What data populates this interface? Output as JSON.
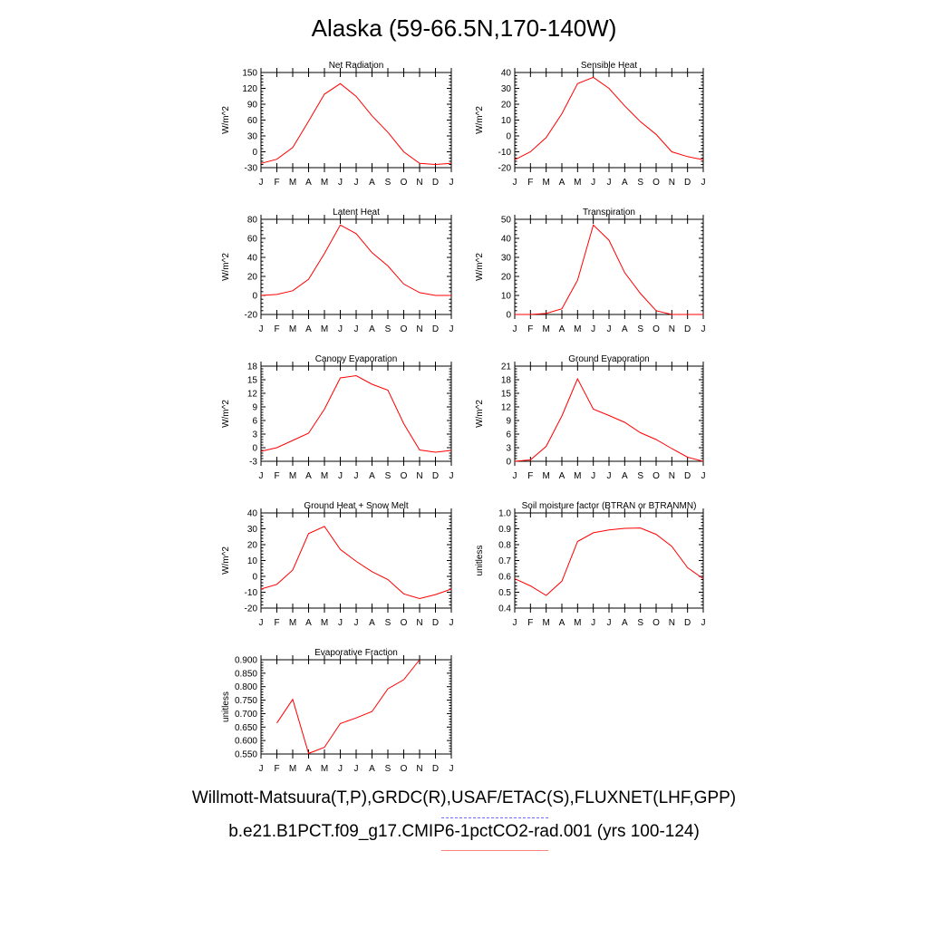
{
  "title": "Alaska (59-66.5N,170-140W)",
  "legend": {
    "obs_label": "Willmott-Matsuura(T,P),GRDC(R),USAF/ETAC(S),FLUXNET(LHF,GPP)",
    "model_label": "b.e21.B1PCT.f09_g17.CMIP6-1pctCO2-rad.001 (yrs 100-124)",
    "obs_color": "#6b6bff",
    "model_color": "#ff8080"
  },
  "series_color": "#ff0000",
  "chart_data": [
    {
      "type": "line",
      "title": "Net Radiation",
      "ylabel": "W/m^2",
      "categories": [
        "J",
        "F",
        "M",
        "A",
        "M",
        "J",
        "J",
        "A",
        "S",
        "O",
        "N",
        "D",
        "J"
      ],
      "ylim": [
        -30,
        150
      ],
      "yticks": [
        "-30",
        "0",
        "30",
        "60",
        "90",
        "120",
        "150"
      ],
      "values": [
        -22,
        -14,
        8,
        58,
        109,
        129,
        105,
        68,
        37,
        0,
        -22,
        -24,
        -22
      ]
    },
    {
      "type": "line",
      "title": "Sensible Heat",
      "ylabel": "W/m^2",
      "categories": [
        "J",
        "F",
        "M",
        "A",
        "M",
        "J",
        "J",
        "A",
        "S",
        "O",
        "N",
        "D",
        "J"
      ],
      "ylim": [
        -20,
        40
      ],
      "yticks": [
        "-20",
        "-10",
        "0",
        "10",
        "20",
        "30",
        "40"
      ],
      "values": [
        -15,
        -10,
        -1,
        14,
        33,
        37,
        30,
        19,
        9,
        1,
        -10,
        -13,
        -15
      ]
    },
    {
      "type": "line",
      "title": "Latent Heat",
      "ylabel": "W/m^2",
      "categories": [
        "J",
        "F",
        "M",
        "A",
        "M",
        "J",
        "J",
        "A",
        "S",
        "O",
        "N",
        "D",
        "J"
      ],
      "ylim": [
        -20,
        80
      ],
      "yticks": [
        "-20",
        "0",
        "20",
        "40",
        "60",
        "80"
      ],
      "values": [
        0,
        1,
        5,
        17,
        44,
        74,
        65,
        45,
        31,
        12,
        3,
        0,
        0
      ]
    },
    {
      "type": "line",
      "title": "Transpiration",
      "ylabel": "W/m^2",
      "categories": [
        "J",
        "F",
        "M",
        "A",
        "M",
        "J",
        "J",
        "A",
        "S",
        "O",
        "N",
        "D",
        "J"
      ],
      "ylim": [
        0,
        50
      ],
      "yticks": [
        "0",
        "10",
        "20",
        "30",
        "40",
        "50"
      ],
      "values": [
        0,
        0,
        0.5,
        3,
        18,
        47,
        39,
        22,
        11,
        2,
        0,
        0,
        0
      ]
    },
    {
      "type": "line",
      "title": "Canopy Evaporation",
      "ylabel": "W/m^2",
      "categories": [
        "J",
        "F",
        "M",
        "A",
        "M",
        "J",
        "J",
        "A",
        "S",
        "O",
        "N",
        "D",
        "J"
      ],
      "ylim": [
        -3,
        18
      ],
      "yticks": [
        "-3",
        "0",
        "3",
        "6",
        "9",
        "12",
        "15",
        "18"
      ],
      "values": [
        -0.8,
        0,
        1.6,
        3.2,
        8.5,
        15.4,
        15.9,
        14,
        12.7,
        5.3,
        -0.5,
        -1,
        -0.6
      ]
    },
    {
      "type": "line",
      "title": "Ground Evaporation",
      "ylabel": "W/m^2",
      "categories": [
        "J",
        "F",
        "M",
        "A",
        "M",
        "J",
        "J",
        "A",
        "S",
        "O",
        "N",
        "D",
        "J"
      ],
      "ylim": [
        0,
        21
      ],
      "yticks": [
        "0",
        "3",
        "6",
        "9",
        "12",
        "15",
        "18",
        "21"
      ],
      "values": [
        0,
        0.3,
        3.3,
        10,
        18.2,
        11.5,
        10.1,
        8.6,
        6.3,
        4.8,
        2.8,
        0.9,
        0
      ]
    },
    {
      "type": "line",
      "title": "Ground Heat + Snow Melt",
      "ylabel": "W/m^2",
      "categories": [
        "J",
        "F",
        "M",
        "A",
        "M",
        "J",
        "J",
        "A",
        "S",
        "O",
        "N",
        "D",
        "J"
      ],
      "ylim": [
        -20,
        40
      ],
      "yticks": [
        "-20",
        "-10",
        "0",
        "10",
        "20",
        "30",
        "40"
      ],
      "values": [
        -8,
        -5,
        4,
        27,
        31.5,
        17,
        9.5,
        3,
        -2,
        -11,
        -14,
        -11.5,
        -8
      ]
    },
    {
      "type": "line",
      "title": "Soil moisture factor (BTRAN or BTRANMN)",
      "ylabel": "unitless",
      "categories": [
        "J",
        "F",
        "M",
        "A",
        "M",
        "J",
        "J",
        "A",
        "S",
        "O",
        "N",
        "D",
        "J"
      ],
      "ylim": [
        0.4,
        1.0
      ],
      "yticks": [
        "0.4",
        "0.5",
        "0.6",
        "0.7",
        "0.8",
        "0.9",
        "1.0"
      ],
      "values": [
        0.585,
        0.54,
        0.48,
        0.57,
        0.82,
        0.875,
        0.893,
        0.903,
        0.905,
        0.865,
        0.79,
        0.655,
        0.585
      ]
    },
    {
      "type": "line",
      "title": "Evaporative Fraction",
      "ylabel": "unitless",
      "categories": [
        "J",
        "F",
        "M",
        "A",
        "M",
        "J",
        "J",
        "A",
        "S",
        "O",
        "N",
        "D",
        "J"
      ],
      "ylim": [
        0.55,
        0.9
      ],
      "yticks": [
        "0.550",
        "0.600",
        "0.650",
        "0.700",
        "0.750",
        "0.800",
        "0.850",
        "0.900"
      ],
      "values": [
        null,
        0.665,
        0.753,
        0.552,
        0.575,
        0.663,
        0.684,
        0.708,
        0.792,
        0.826,
        0.9,
        null,
        null
      ]
    }
  ]
}
